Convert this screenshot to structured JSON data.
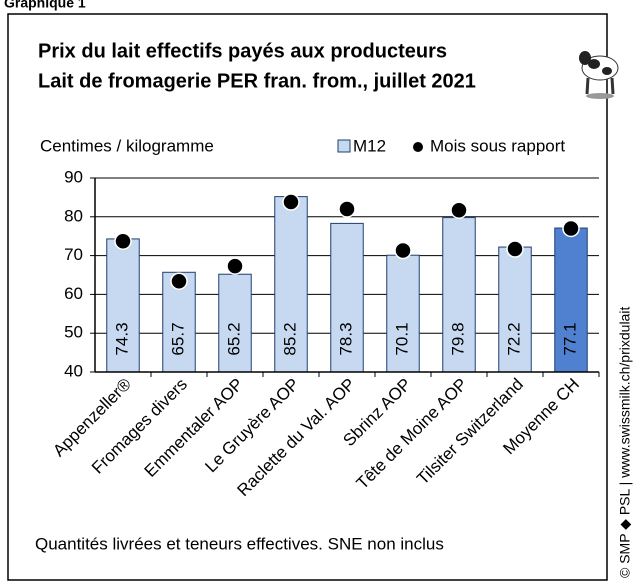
{
  "page_label": "Graphique 1",
  "chart_data": {
    "type": "bar",
    "title": "Prix du lait effectifs payés aux producteurs",
    "subtitle": "Lait de fromagerie PER fran. from., juillet 2021",
    "ylabel": "Centimes / kilogramme",
    "categories": [
      "Appenzeller®",
      "Fromages divers",
      "Emmentaler AOP",
      "Le Gruyère AOP",
      "Raclette du Val. AOP",
      "Sbrinz AOP",
      "Tête de Moine AOP",
      "Tilsiter Switzerland",
      "Moyenne CH"
    ],
    "series": [
      {
        "name": "M12",
        "color": "#c6d9f1",
        "colors": [
          "#c6d9f1",
          "#c6d9f1",
          "#c6d9f1",
          "#c6d9f1",
          "#c6d9f1",
          "#c6d9f1",
          "#c6d9f1",
          "#c6d9f1",
          "#4f81d0"
        ],
        "values": [
          74.3,
          65.7,
          65.2,
          85.2,
          78.3,
          70.1,
          79.8,
          72.2,
          77.1
        ]
      },
      {
        "name": "Mois sous rapport",
        "color": "#000000",
        "values": [
          73.7,
          63.4,
          67.3,
          83.8,
          82.0,
          71.3,
          81.7,
          71.7,
          77.0
        ]
      }
    ],
    "ylim": [
      40,
      90
    ],
    "yticks": [
      40,
      50,
      60,
      70,
      80,
      90
    ],
    "grid": true,
    "note": "Quantités livrées et teneurs effectives. SNE non inclus",
    "source": "© SMP ◆ PSL | www.swissmilk.ch/prixdulait"
  }
}
